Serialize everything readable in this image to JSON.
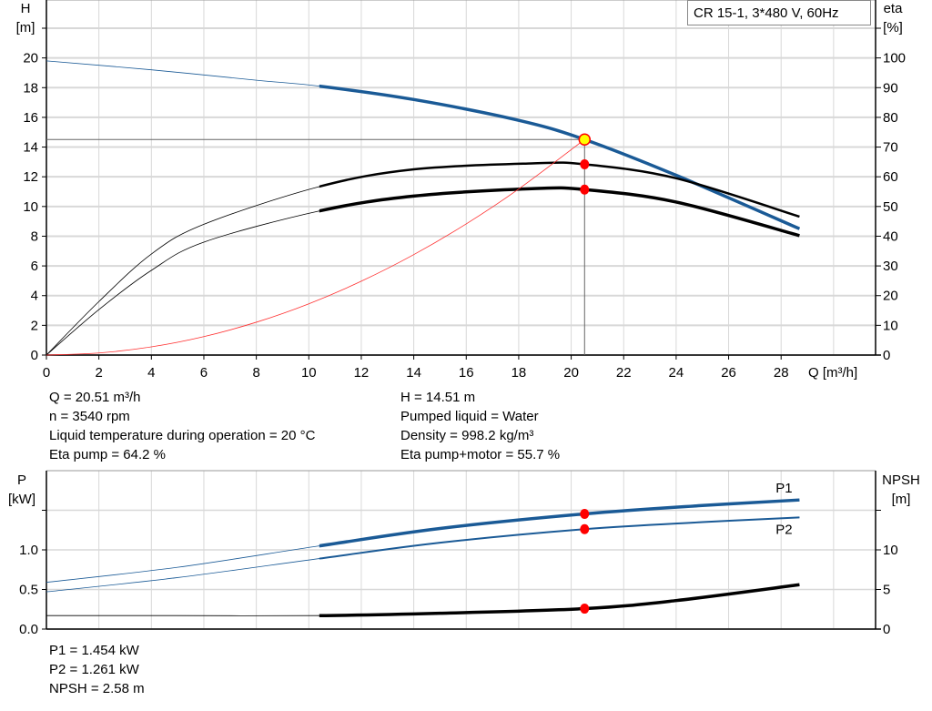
{
  "title_box": "CR 15-1, 3*480 V, 60Hz",
  "colors": {
    "head": "#1a5a96",
    "efficiency": "#000000",
    "system": "#ff3030",
    "point": "#ff0000",
    "duty_point": "#ffff00",
    "grid": "#d8d8d8"
  },
  "info_top": {
    "left": [
      "Q = 20.51 m³/h",
      "n = 3540 rpm",
      "Liquid temperature during operation = 20 °C",
      "Eta pump = 64.2 %"
    ],
    "right": [
      "H = 14.51 m",
      "Pumped liquid = Water",
      "Density = 998.2 kg/m³",
      "Eta pump+motor = 55.7 %"
    ]
  },
  "info_bottom": [
    "P1 = 1.454 kW",
    "P2 = 1.261 kW",
    "NPSH = 2.58 m"
  ],
  "chart_data": [
    {
      "type": "line",
      "xlabel": "Q [m³/h]",
      "ylabel_left": [
        "H",
        "[m]"
      ],
      "ylabel_right": [
        "eta",
        "[%]"
      ],
      "xlim": [
        0,
        31.6
      ],
      "ylim_left": [
        0,
        23.9
      ],
      "ylim_right": [
        0,
        119.5
      ],
      "xticks": [
        0,
        2,
        4,
        6,
        8,
        10,
        12,
        14,
        16,
        18,
        20,
        22,
        24,
        26,
        28
      ],
      "yticks_left": [
        0,
        2,
        4,
        6,
        8,
        10,
        12,
        14,
        16,
        18,
        20
      ],
      "yticks_right": [
        0,
        10,
        20,
        30,
        40,
        50,
        60,
        70,
        80,
        90,
        100
      ],
      "grid": true,
      "duty_point": {
        "Q": 20.51,
        "H": 14.51
      },
      "series": [
        {
          "key": "H",
          "axis": "left",
          "thick_from": 10.4,
          "x": [
            0,
            4,
            8,
            10.4,
            14,
            18,
            20.51,
            24,
            28.7
          ],
          "y": [
            19.8,
            19.2,
            18.5,
            18.1,
            17.2,
            15.8,
            14.51,
            12.1,
            8.5
          ]
        },
        {
          "key": "eta_pump",
          "axis": "right",
          "thick_from": 10.4,
          "x": [
            0,
            2,
            4,
            6,
            10.4,
            14,
            18.5,
            20.51,
            24,
            28.7
          ],
          "y": [
            0,
            18,
            34,
            44,
            56.7,
            62.5,
            64.5,
            64.2,
            59.5,
            46.6
          ]
        },
        {
          "key": "eta_pump_motor",
          "axis": "right",
          "thick_from": 10.4,
          "x": [
            0,
            2,
            4,
            6,
            10.4,
            14,
            18.5,
            20.51,
            24,
            28.7
          ],
          "y": [
            0,
            15.3,
            28.5,
            38,
            48.5,
            53.5,
            56,
            55.7,
            51.5,
            40.2
          ]
        },
        {
          "key": "system_curve",
          "axis": "left",
          "x": [
            0,
            2,
            4,
            6,
            8,
            10,
            12,
            14,
            16,
            18,
            20.51
          ],
          "y": [
            0,
            0.14,
            0.55,
            1.24,
            2.21,
            3.45,
            4.97,
            6.76,
            8.83,
            11.18,
            14.51
          ]
        }
      ],
      "markers": [
        {
          "axis": "right",
          "x": 20.51,
          "y": 64.2
        },
        {
          "axis": "right",
          "x": 20.51,
          "y": 55.7
        }
      ]
    },
    {
      "type": "line",
      "ylabel_left": [
        "P",
        "[kW]"
      ],
      "ylabel_right": [
        "NPSH",
        "[m]"
      ],
      "xlim": [
        0,
        31.6
      ],
      "ylim_left": [
        0,
        2.0
      ],
      "ylim_right": [
        0,
        20
      ],
      "yticks_left": [
        "0.0",
        "0.5",
        "1.0"
      ],
      "yticks_right": [
        "0",
        "5",
        "10"
      ],
      "grid": true,
      "series": [
        {
          "name": "P1",
          "axis": "left",
          "thick_from": 10.4,
          "x": [
            0,
            5,
            10.4,
            15,
            20.51,
            25,
            28.7
          ],
          "y": [
            0.59,
            0.78,
            1.05,
            1.27,
            1.454,
            1.56,
            1.63
          ]
        },
        {
          "name": "P2",
          "axis": "left",
          "thick_from": 10.4,
          "x": [
            0,
            5,
            10.4,
            15,
            20.51,
            25,
            28.7
          ],
          "y": [
            0.47,
            0.65,
            0.89,
            1.09,
            1.261,
            1.35,
            1.41
          ]
        },
        {
          "key": "NPSH",
          "axis": "right",
          "thick_from": 10.4,
          "x": [
            0,
            5,
            10.4,
            15,
            20.51,
            24,
            28.7
          ],
          "y": [
            1.7,
            1.7,
            1.7,
            2.0,
            2.58,
            3.6,
            5.6
          ]
        }
      ],
      "markers": [
        {
          "axis": "left",
          "x": 20.51,
          "y": 1.454
        },
        {
          "axis": "left",
          "x": 20.51,
          "y": 1.261
        },
        {
          "axis": "right",
          "x": 20.51,
          "y": 2.58
        }
      ]
    }
  ]
}
